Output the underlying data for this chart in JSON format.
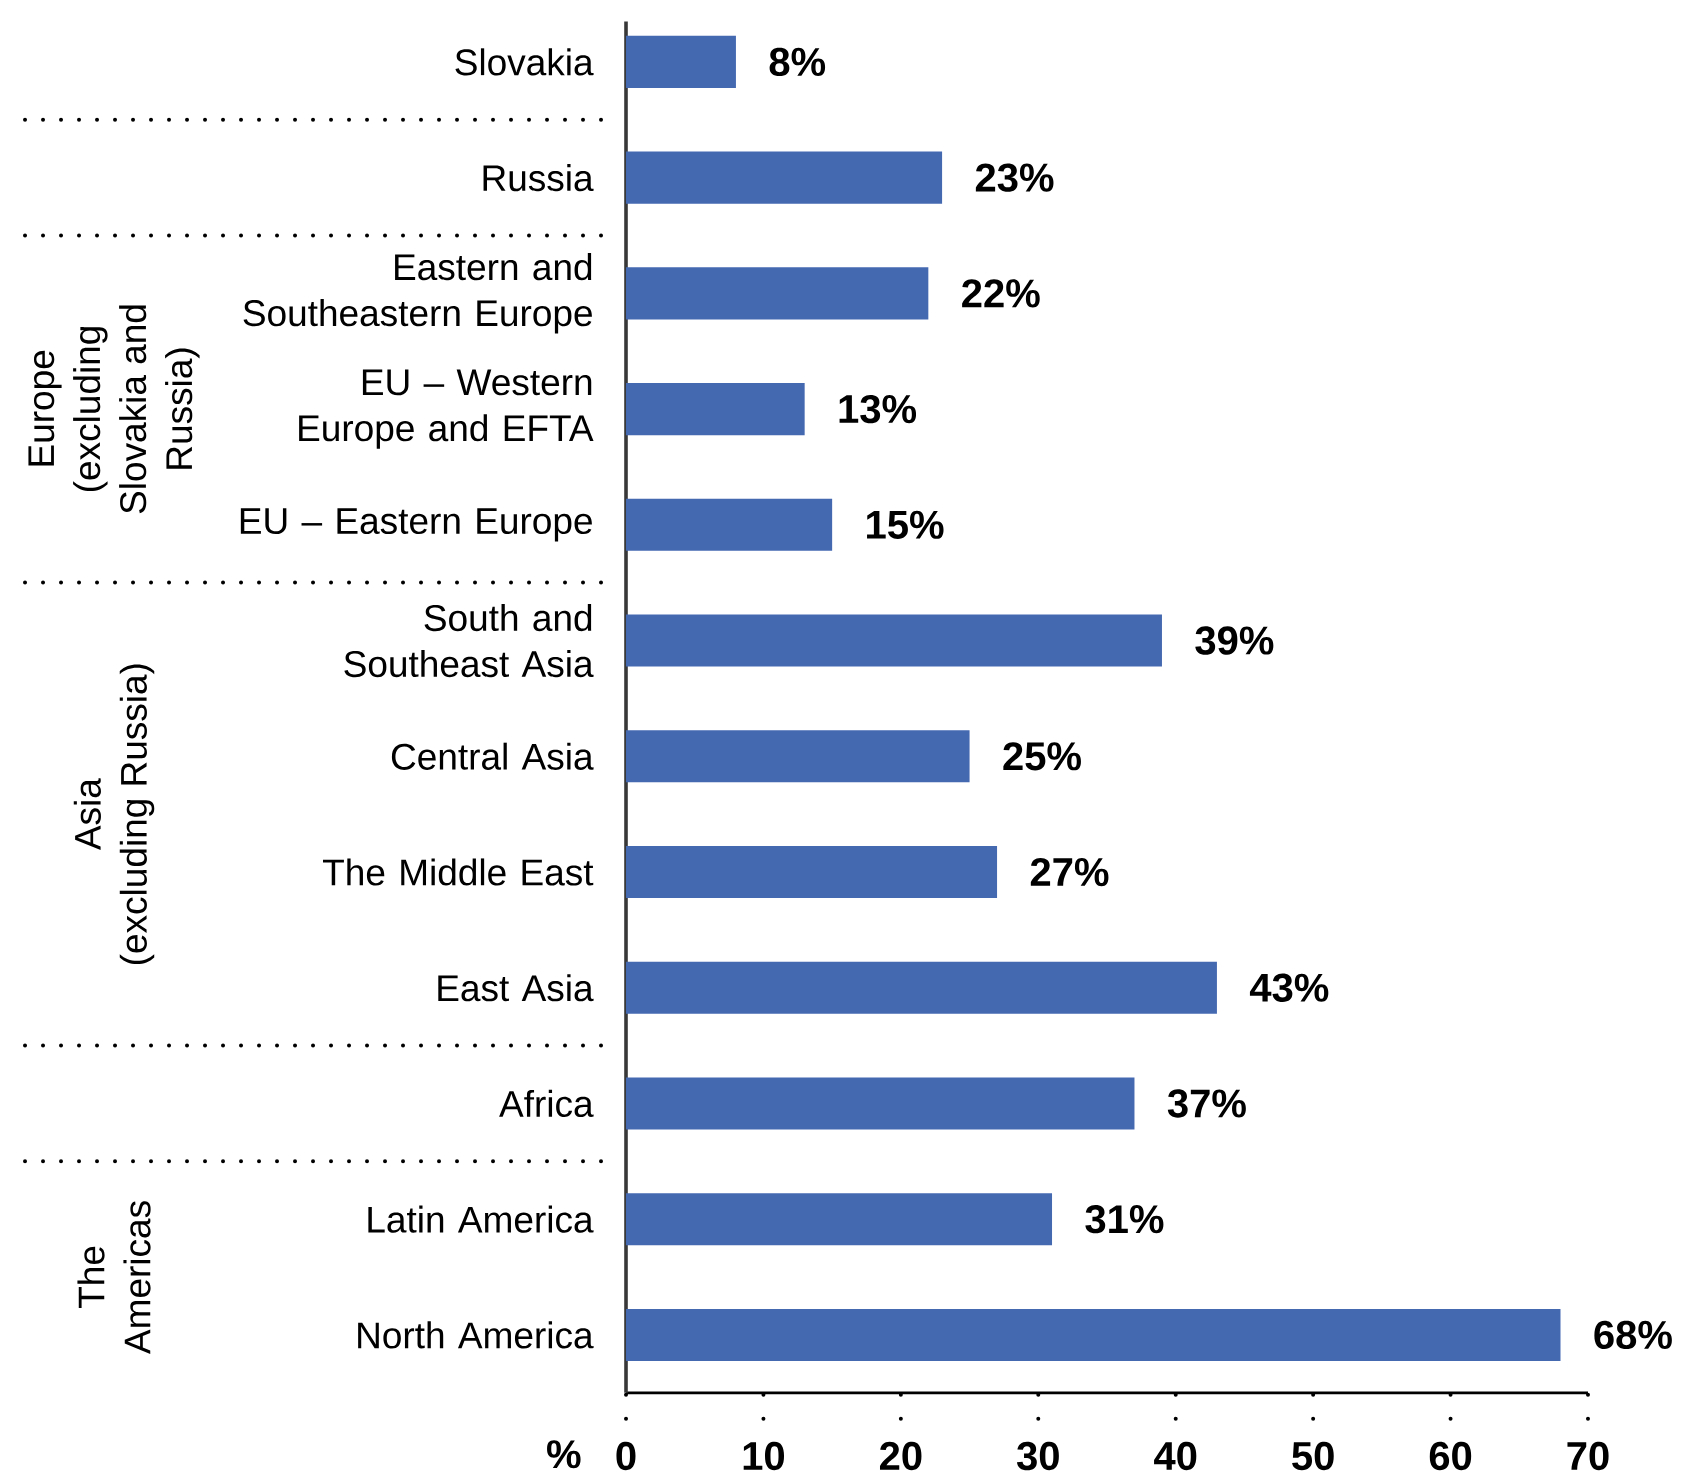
{
  "chart_data": {
    "type": "bar",
    "orientation": "horizontal",
    "categories": [
      "Slovakia",
      "Russia",
      "Eastern and Southeastern Europe",
      "EU – Western Europe and EFTA",
      "EU – Eastern Europe",
      "South and Southeast Asia",
      "Central Asia",
      "The Middle East",
      "East Asia",
      "Africa",
      "Latin America",
      "North America"
    ],
    "values": [
      8,
      23,
      22,
      13,
      15,
      39,
      25,
      27,
      43,
      37,
      31,
      68
    ],
    "value_labels": [
      "8%",
      "23%",
      "22%",
      "13%",
      "15%",
      "39%",
      "25%",
      "27%",
      "43%",
      "37%",
      "31%",
      "68%"
    ],
    "color": "#4569b1",
    "xlim": [
      0,
      70
    ],
    "xticks": [
      0,
      10,
      20,
      30,
      40,
      50,
      60,
      70
    ],
    "xlabel": "%",
    "annotations": [
      "Europe (excluding Slovakia and Russia)",
      "Asia (excluding Russia)",
      "The Americas"
    ]
  }
}
